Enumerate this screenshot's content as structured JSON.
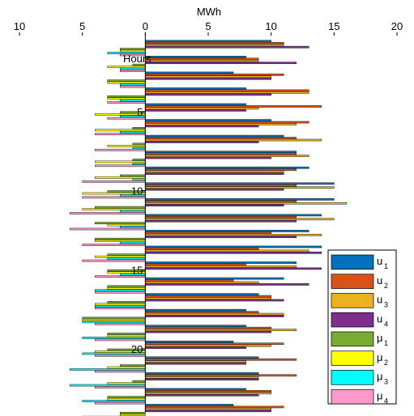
{
  "chart_data": {
    "type": "bar",
    "orientation": "horizontal",
    "xlabel": "MWh",
    "ylabel": "Hours",
    "xlim": [
      -10,
      20
    ],
    "x_ticks": [
      -10,
      -5,
      0,
      5,
      10,
      15,
      20
    ],
    "x_tick_labels": [
      "10",
      "5",
      "0",
      "5",
      "10",
      "15",
      "20"
    ],
    "hour_ticks": [
      5,
      10,
      15,
      20
    ],
    "hours": [
      1,
      2,
      3,
      4,
      5,
      6,
      7,
      8,
      9,
      10,
      11,
      12,
      13,
      14,
      15,
      16,
      17,
      18,
      19,
      20,
      21,
      22,
      23,
      24
    ],
    "legend_position": "right",
    "series": [
      {
        "name": "u",
        "sub": "1",
        "color": "#0072BD",
        "values": [
          10,
          8,
          7,
          8,
          8,
          10,
          11,
          12,
          13,
          15,
          15,
          14,
          13,
          14,
          12,
          11,
          9,
          8,
          8,
          7,
          9,
          9,
          8,
          7
        ]
      },
      {
        "name": "u",
        "sub": "2",
        "color": "#D95319",
        "values": [
          11,
          9,
          11,
          13,
          14,
          13,
          12,
          12,
          12,
          12,
          12,
          12,
          10,
          9,
          8,
          7,
          10,
          9,
          10,
          11,
          12,
          12,
          10,
          11
        ]
      },
      {
        "name": "u",
        "sub": "3",
        "color": "#EDB120",
        "values": [
          11,
          9,
          10,
          13,
          9,
          12,
          14,
          13,
          11,
          15,
          16,
          15,
          14,
          13,
          12,
          9,
          10,
          11,
          12,
          10,
          8,
          9,
          10,
          10
        ]
      },
      {
        "name": "u",
        "sub": "4",
        "color": "#7E2F8E",
        "values": [
          13,
          12,
          10,
          10,
          8,
          9,
          9,
          10,
          11,
          11,
          11,
          12,
          12,
          14,
          14,
          13,
          11,
          11,
          10,
          8,
          8,
          9,
          9,
          10
        ]
      },
      {
        "name": "μ",
        "sub": "1",
        "color": "#77AC30",
        "values": [
          -2,
          -1,
          -3,
          -3,
          -2,
          -1,
          -1,
          -1,
          -2,
          -3,
          -4,
          -4,
          -4,
          -3,
          -3,
          -3,
          -3,
          -5,
          -3,
          -3,
          -2,
          -1,
          -3,
          -2
        ]
      },
      {
        "name": "μ",
        "sub": "2",
        "color": "#FFFF00",
        "values": [
          -2,
          -3,
          -3,
          -3,
          -4,
          -4,
          -3,
          -4,
          -4,
          -5,
          -5,
          -3,
          -4,
          -4,
          -3,
          -3,
          -4,
          -5,
          -3,
          -4,
          -3,
          -3,
          -3,
          -2
        ]
      },
      {
        "name": "μ",
        "sub": "3",
        "color": "#00FFFF",
        "values": [
          -3,
          -2,
          -2,
          -2,
          -2,
          -2,
          -1,
          -1,
          -1,
          -2,
          -2,
          -2,
          -2,
          -3,
          -2,
          -4,
          -4,
          -5,
          -5,
          -5,
          -6,
          -6,
          -5,
          -5
        ]
      },
      {
        "name": "μ",
        "sub": "4",
        "color": "#FF99CC",
        "values": [
          -2,
          -2,
          -2,
          -3,
          -3,
          -4,
          -4,
          -4,
          -5,
          -5,
          -6,
          -6,
          -5,
          -5,
          -4,
          -4,
          -4,
          -4,
          -4,
          -4,
          -4,
          -4,
          -4,
          -4
        ]
      }
    ]
  }
}
